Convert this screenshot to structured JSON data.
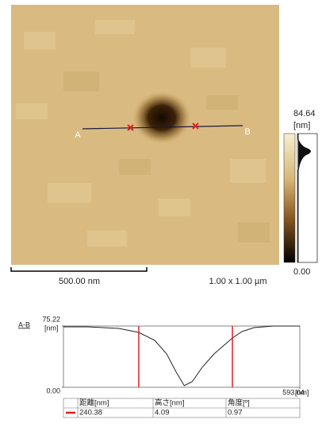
{
  "image": {
    "marker_a": "A",
    "marker_b": "B",
    "scale_bar": "500.00 nm",
    "size": "1.00 x 1.00 µm"
  },
  "colorbar": {
    "max": 84.64,
    "unit": "[nm]",
    "min": {
      "value": 0,
      "label": "0.00"
    }
  },
  "profile": {
    "label": "A-B",
    "y_unit": "[nm]",
    "x_unit": "[nm]",
    "ylim": [
      0,
      75.22
    ],
    "xlim": [
      0,
      593.04
    ],
    "yticks": [
      {
        "value": 0,
        "label": "0.00"
      },
      75.22
    ],
    "xticks": [
      593.04
    ],
    "x": [
      0,
      60,
      139,
      189,
      229,
      259,
      283,
      303,
      323,
      348,
      378,
      408,
      424,
      448,
      478,
      527,
      593
    ],
    "y": [
      74.2,
      74.2,
      72.3,
      67.4,
      57.6,
      41.0,
      18.6,
      2.0,
      6.8,
      24.4,
      41.0,
      53.7,
      60.6,
      68.4,
      73.3,
      75.2,
      75.2
    ],
    "cursors": [
      189,
      424
    ]
  },
  "table": {
    "headers": [
      "距離[nm]",
      "高さ[nm]",
      "角度[º]"
    ],
    "rows": [
      [
        "240.38",
        "4.09",
        "0.97"
      ]
    ]
  }
}
